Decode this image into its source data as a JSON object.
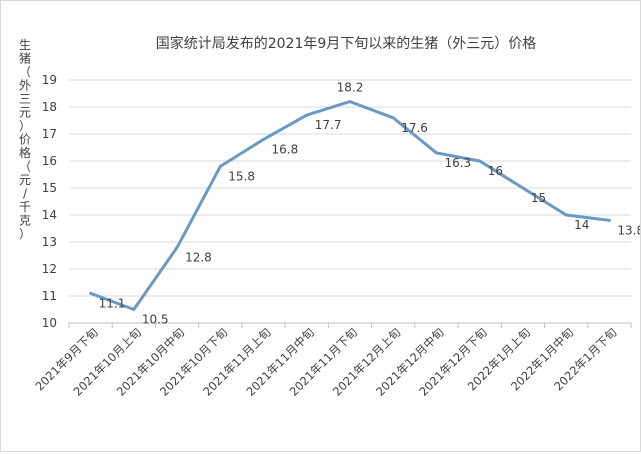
{
  "chart_data": {
    "type": "line",
    "title": "国家统计局发布的2021年9月下旬以来的生猪（外三元）价格",
    "ylabel": "生猪（外三元）价格（元/千克）",
    "xlabel": "",
    "categories": [
      "2021年9月下旬",
      "2021年10月上旬",
      "2021年10月中旬",
      "2021年10月下旬",
      "2021年11月上旬",
      "2021年11月中旬",
      "2021年11月下旬",
      "2021年12月上旬",
      "2021年12月中旬",
      "2021年12月下旬",
      "2022年1月上旬",
      "2022年1月中旬",
      "2022年1月下旬"
    ],
    "values": [
      11.1,
      10.5,
      12.8,
      15.8,
      16.8,
      17.7,
      18.2,
      17.6,
      16.3,
      16,
      15,
      14,
      13.8
    ],
    "data_labels": [
      "11.1",
      "10.5",
      "12.8",
      "15.8",
      "16.8",
      "17.7",
      "18.2",
      "17.6",
      "16.3",
      "16",
      "15",
      "14",
      "13.8"
    ],
    "yticks": [
      "10",
      "11",
      "12",
      "13",
      "14",
      "15",
      "16",
      "17",
      "18",
      "19"
    ],
    "ylim": [
      10,
      19
    ],
    "grid": true,
    "legend": "none",
    "colors": {
      "line": "#6a9ac4",
      "grid": "#d9d9d9",
      "text": "#404040",
      "axis": "#bfbfbf"
    }
  }
}
